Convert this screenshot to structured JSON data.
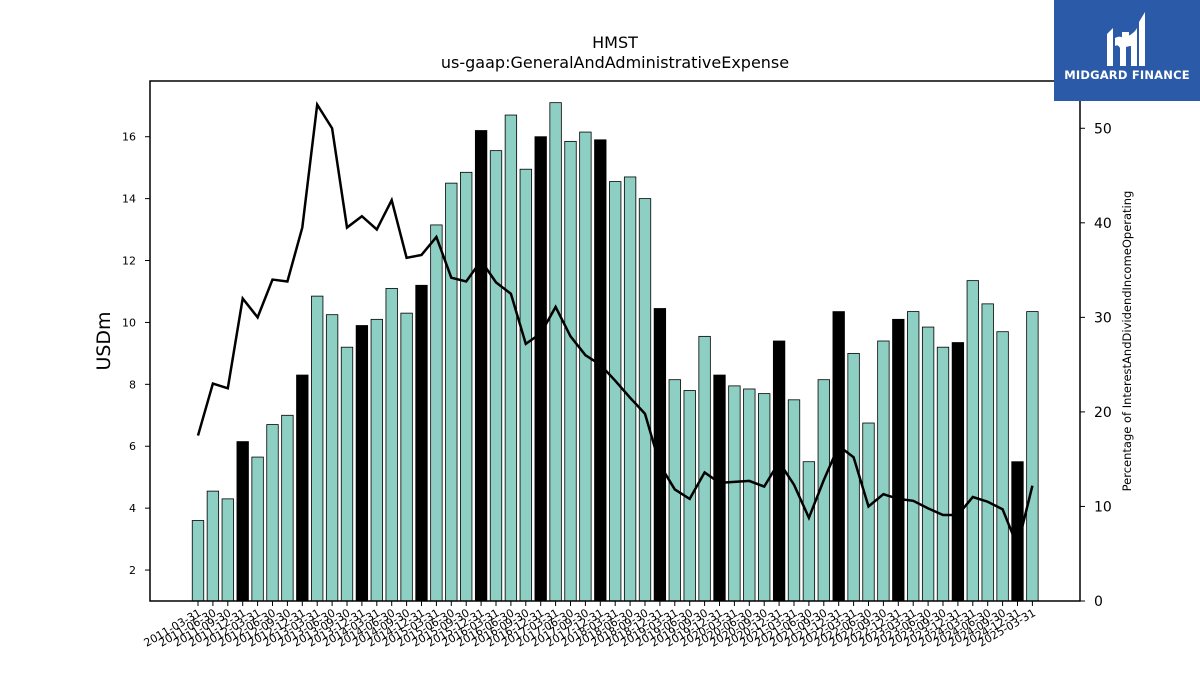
{
  "chart_data": {
    "type": "bar",
    "title": "HMST",
    "subtitle": "us-gaap:GeneralAndAdministrativeExpense",
    "ylabel": "USDm",
    "y2label": "Percentage of InterestAndDividendIncomeOperating",
    "ylim": [
      1,
      17.8
    ],
    "y2lim": [
      0,
      55
    ],
    "yticks": [
      2,
      4,
      6,
      8,
      10,
      12,
      14,
      16
    ],
    "y2ticks": [
      0,
      10,
      20,
      30,
      40,
      50
    ],
    "grid": false,
    "bar_color": "#8ecfc3",
    "highlight_color": "#000000",
    "line_color": "#000000",
    "categories": [
      "2011-03-31",
      "2011-06-30",
      "2011-09-30",
      "2011-12-31",
      "2012-03-31",
      "2012-06-30",
      "2012-09-30",
      "2012-12-31",
      "2013-03-31",
      "2013-06-30",
      "2013-09-30",
      "2013-12-31",
      "2014-03-31",
      "2014-06-30",
      "2014-09-30",
      "2014-12-31",
      "2015-03-31",
      "2015-06-30",
      "2015-09-30",
      "2015-12-31",
      "2016-03-31",
      "2016-06-30",
      "2016-09-30",
      "2016-12-31",
      "2017-03-31",
      "2017-06-30",
      "2017-09-30",
      "2017-12-31",
      "2018-03-31",
      "2018-06-30",
      "2018-09-30",
      "2018-12-31",
      "2019-03-31",
      "2019-06-30",
      "2019-09-30",
      "2019-12-31",
      "2020-03-31",
      "2020-06-30",
      "2020-09-30",
      "2020-12-31",
      "2021-03-31",
      "2021-06-30",
      "2021-09-30",
      "2021-12-31",
      "2022-03-31",
      "2022-06-30",
      "2022-09-30",
      "2022-12-31",
      "2023-03-31",
      "2023-06-30",
      "2023-09-30",
      "2023-12-31",
      "2024-03-31",
      "2024-06-30",
      "2024-09-30",
      "2024-12-31",
      "2025-03-31"
    ],
    "xtick_labels": [
      "2011-03-31",
      "2011-06-30",
      "2011-09-30",
      "2011-12-31",
      "2012-03-31",
      "2012-06-30",
      "2012-09-30",
      "2012-12-31",
      "2013-03-31",
      "2013-06-30",
      "2013-09-30",
      "2013-12-31",
      "2014-03-31",
      "2014-06-30",
      "2014-09-30",
      "2014-12-31",
      "2015-03-31",
      "2015-06-30",
      "2015-09-30",
      "2015-12-31",
      "2016-03-31",
      "2016-06-30",
      "2016-09-30",
      "2016-12-31",
      "2017-03-31",
      "2017-06-30",
      "2017-09-30",
      "2017-12-31",
      "2018-03-31",
      "2018-06-30",
      "2018-09-30",
      "2018-12-31",
      "2019-03-31",
      "2019-06-30",
      "2019-09-30",
      "2019-12-31",
      "2020-03-31",
      "2020-06-30",
      "2020-09-30",
      "2020-12-31",
      "2021-03-31",
      "2021-06-30",
      "2021-09-30",
      "2021-12-31",
      "2022-03-31",
      "2022-06-30",
      "2022-09-30",
      "2022-12-31",
      "2023-03-31",
      "2023-06-30",
      "2023-09-30",
      "2023-12-31",
      "2024-03-31",
      "2024-06-30",
      "2024-09-30",
      "2024-12-31",
      "2025-03-31"
    ],
    "values": [
      3.6,
      4.55,
      4.3,
      6.15,
      5.65,
      6.7,
      7.0,
      8.3,
      10.85,
      10.25,
      9.2,
      9.9,
      10.1,
      11.1,
      10.3,
      11.2,
      13.15,
      14.5,
      14.85,
      16.2,
      15.55,
      16.7,
      14.95,
      16.0,
      17.1,
      15.85,
      16.15,
      15.9,
      14.55,
      14.7,
      14.0,
      10.45,
      8.15,
      7.8,
      9.55,
      8.3,
      7.95,
      7.85,
      7.7,
      9.4,
      7.5,
      5.5,
      8.15,
      10.35,
      9.0,
      6.75,
      9.4,
      10.1,
      10.35,
      9.85,
      9.2,
      9.35,
      11.35,
      10.6,
      9.7,
      5.5,
      10.35
    ],
    "highlighted": [
      false,
      false,
      false,
      true,
      false,
      false,
      false,
      true,
      false,
      false,
      false,
      true,
      false,
      false,
      false,
      true,
      false,
      false,
      false,
      true,
      false,
      false,
      false,
      true,
      false,
      false,
      false,
      true,
      false,
      false,
      false,
      true,
      false,
      false,
      false,
      true,
      false,
      false,
      false,
      true,
      false,
      false,
      false,
      true,
      false,
      false,
      false,
      true,
      false,
      false,
      false,
      true,
      false,
      false,
      false,
      true,
      false
    ],
    "line_values": [
      17.5,
      23.0,
      22.5,
      32.0,
      30.0,
      34.0,
      33.8,
      39.5,
      52.5,
      50.0,
      39.5,
      40.7,
      39.3,
      42.4,
      36.3,
      36.6,
      38.5,
      34.2,
      33.8,
      36.0,
      33.7,
      32.5,
      27.2,
      28.3,
      31.1,
      28.0,
      26.0,
      25.0,
      23.3,
      21.5,
      19.8,
      14.4,
      11.8,
      10.8,
      13.6,
      12.5,
      12.6,
      12.7,
      12.1,
      14.7,
      12.3,
      8.8,
      12.8,
      16.4,
      15.2,
      10.0,
      11.3,
      10.8,
      10.6,
      9.8,
      9.1,
      9.1,
      11.0,
      10.5,
      9.7,
      5.8,
      12.2
    ]
  },
  "logo": {
    "text": "MIDGARD FINANCE",
    "background": "#2b5aa8",
    "icon": "midgard-logo-icon"
  }
}
